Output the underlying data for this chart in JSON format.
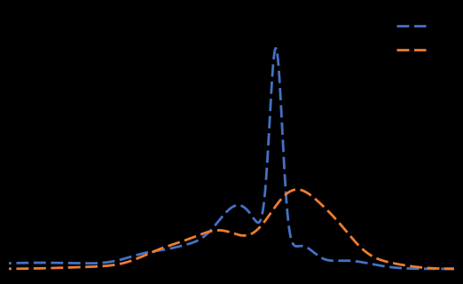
{
  "background_color": "#000000",
  "axes_bg_color": "#000000",
  "line1_color": "#4472C4",
  "line2_color": "#ED7D31",
  "line1_label": " ",
  "line2_label": " ",
  "legend_facecolor": "#000000",
  "legend_edgecolor": "#000000",
  "legend_textcolor": "#000000",
  "figsize": [
    5.22,
    3.2
  ],
  "dpi": 100,
  "linewidth": 2.0,
  "dash_on": 5,
  "dash_off": 2
}
